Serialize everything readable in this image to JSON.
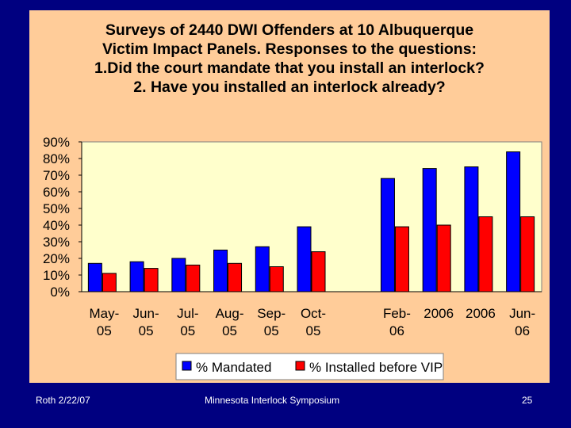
{
  "chart_data": {
    "type": "bar",
    "title": [
      "Surveys of 2440 DWI Offenders at 10 Albuquerque",
      "Victim Impact Panels.  Responses to the questions:",
      "1.Did the court mandate that you install an interlock?",
      "2. Have you installed an interlock already?"
    ],
    "categories": [
      [
        "May-",
        "05"
      ],
      [
        "Jun-",
        "05"
      ],
      [
        "Jul-",
        "05"
      ],
      [
        "Aug-",
        "05"
      ],
      [
        "Sep-",
        "05"
      ],
      [
        "Oct-",
        "05"
      ],
      [
        "",
        ""
      ],
      [
        "Feb-",
        "06"
      ],
      [
        "2006",
        ""
      ],
      [
        "2006",
        ""
      ],
      [
        "Jun-",
        "06"
      ]
    ],
    "series": [
      {
        "name": "% Mandated",
        "color": "#0000FF",
        "values": [
          0.17,
          0.18,
          0.2,
          0.25,
          0.27,
          0.39,
          null,
          0.68,
          0.74,
          0.75,
          0.84
        ]
      },
      {
        "name": "% Installed before VIP",
        "color": "#FF0000",
        "values": [
          0.11,
          0.14,
          0.16,
          0.17,
          0.15,
          0.24,
          null,
          0.39,
          0.4,
          0.45,
          0.45
        ]
      }
    ],
    "ylim": [
      0,
      0.9
    ],
    "yticks": [
      "0%",
      "10%",
      "20%",
      "30%",
      "40%",
      "50%",
      "60%",
      "70%",
      "80%",
      "90%"
    ],
    "plot_background": "#FFFFCC",
    "legend_position": "bottom"
  },
  "footer": {
    "left": "Roth 2/22/07",
    "center": "Minnesota Interlock Symposium",
    "right": "25"
  }
}
